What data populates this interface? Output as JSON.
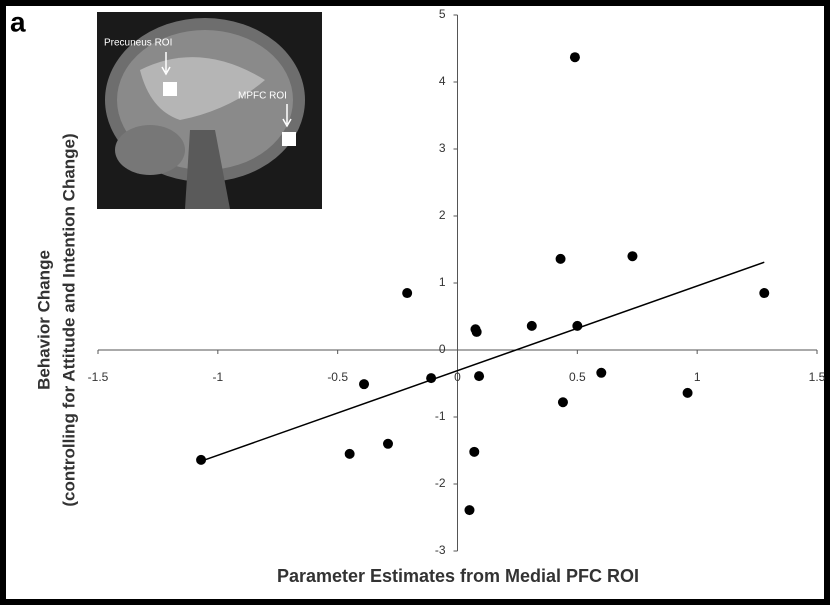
{
  "chart_data": {
    "type": "scatter",
    "panel_label": "a",
    "x_label": "Parameter Estimates from Medial PFC ROI",
    "y_label": [
      "Behavior Change",
      "(controlling for Attitude and Intention Change)"
    ],
    "inset_labels": [
      "Precuneus ROI",
      "MPFC ROI"
    ],
    "color": "#000000",
    "x": [
      -1.07,
      -0.45,
      -0.29,
      -0.39,
      -0.21,
      -0.11,
      0.075,
      0.08,
      0.09,
      0.07,
      0.05,
      0.31,
      0.49,
      0.43,
      0.44,
      0.5,
      0.6,
      0.73,
      0.96,
      1.28
    ],
    "values": [
      -1.64,
      -1.55,
      -1.4,
      -0.51,
      0.85,
      -0.42,
      0.31,
      0.27,
      -0.39,
      -1.52,
      -2.39,
      0.36,
      4.37,
      1.36,
      -0.78,
      0.36,
      -0.34,
      1.4,
      -0.64,
      0.85
    ],
    "trendline": {
      "x": [
        -1.07,
        1.28
      ],
      "y": [
        -1.66,
        1.31
      ]
    },
    "xlim": [
      -1.5,
      1.5
    ],
    "xticks": [
      -1.5,
      -1,
      -0.5,
      0,
      0.5,
      1,
      1.5
    ],
    "ylim": [
      -3,
      5
    ],
    "yticks": [
      -3,
      -2,
      -1,
      0,
      1,
      2,
      3,
      4,
      5
    ]
  }
}
